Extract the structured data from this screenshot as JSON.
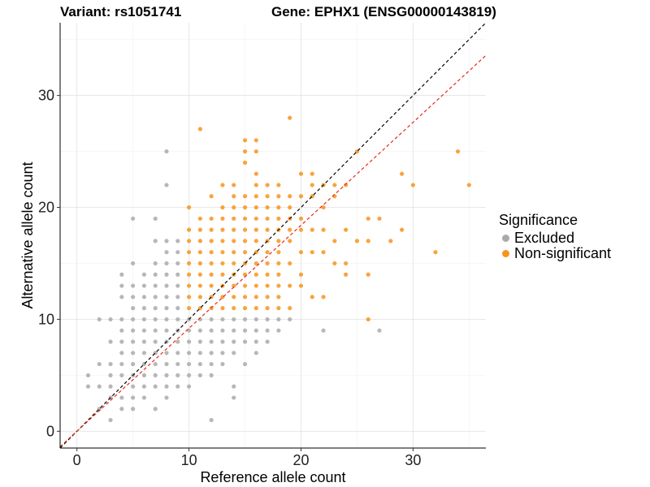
{
  "header": {
    "variant_title": "Variant: rs1051741",
    "gene_title": "Gene: EPHX1 (ENSG00000143819)"
  },
  "legend": {
    "title": "Significance",
    "items": [
      {
        "label": "Excluded",
        "color": "#aaaaaa"
      },
      {
        "label": "Non-significant",
        "color": "#f7941d"
      }
    ]
  },
  "chart_data": {
    "type": "scatter",
    "xlabel": "Reference allele count",
    "ylabel": "Alternative allele count",
    "xlim": [
      -1.5,
      36.5
    ],
    "ylim": [
      -1.5,
      36.5
    ],
    "xticks": [
      0,
      10,
      20,
      30
    ],
    "yticks": [
      0,
      10,
      20,
      30
    ],
    "grid": true,
    "legend_position": "right",
    "reference_lines": [
      {
        "label": "",
        "slope": 1.0,
        "intercept": 0,
        "color": "#000000",
        "style": "dashed"
      },
      {
        "label": "",
        "slope": 0.92,
        "intercept": 0,
        "color": "#e8281c",
        "style": "dashed"
      }
    ],
    "series": [
      {
        "name": "Excluded",
        "color": "#aaaaaa",
        "points": [
          [
            1,
            4
          ],
          [
            1,
            5
          ],
          [
            2,
            2
          ],
          [
            2,
            4
          ],
          [
            2,
            6
          ],
          [
            2,
            10
          ],
          [
            3,
            1
          ],
          [
            3,
            3
          ],
          [
            3,
            4
          ],
          [
            3,
            5
          ],
          [
            3,
            6
          ],
          [
            3,
            8
          ],
          [
            3,
            10
          ],
          [
            4,
            2
          ],
          [
            4,
            3
          ],
          [
            4,
            5
          ],
          [
            4,
            6
          ],
          [
            4,
            7
          ],
          [
            4,
            8
          ],
          [
            4,
            9
          ],
          [
            4,
            10
          ],
          [
            4,
            12
          ],
          [
            4,
            13
          ],
          [
            4,
            14
          ],
          [
            5,
            2
          ],
          [
            5,
            3
          ],
          [
            5,
            4
          ],
          [
            5,
            5
          ],
          [
            5,
            6
          ],
          [
            5,
            7
          ],
          [
            5,
            8
          ],
          [
            5,
            9
          ],
          [
            5,
            10
          ],
          [
            5,
            11
          ],
          [
            5,
            12
          ],
          [
            5,
            13
          ],
          [
            5,
            15
          ],
          [
            5,
            19
          ],
          [
            6,
            3
          ],
          [
            6,
            4
          ],
          [
            6,
            5
          ],
          [
            6,
            6
          ],
          [
            6,
            7
          ],
          [
            6,
            8
          ],
          [
            6,
            9
          ],
          [
            6,
            10
          ],
          [
            6,
            11
          ],
          [
            6,
            12
          ],
          [
            6,
            13
          ],
          [
            6,
            14
          ],
          [
            7,
            2
          ],
          [
            7,
            4
          ],
          [
            7,
            5
          ],
          [
            7,
            6
          ],
          [
            7,
            7
          ],
          [
            7,
            8
          ],
          [
            7,
            9
          ],
          [
            7,
            10
          ],
          [
            7,
            11
          ],
          [
            7,
            12
          ],
          [
            7,
            13
          ],
          [
            7,
            14
          ],
          [
            7,
            15
          ],
          [
            7,
            17
          ],
          [
            7,
            19
          ],
          [
            8,
            3
          ],
          [
            8,
            4
          ],
          [
            8,
            5
          ],
          [
            8,
            6
          ],
          [
            8,
            7
          ],
          [
            8,
            8
          ],
          [
            8,
            9
          ],
          [
            8,
            10
          ],
          [
            8,
            11
          ],
          [
            8,
            12
          ],
          [
            8,
            13
          ],
          [
            8,
            14
          ],
          [
            8,
            15
          ],
          [
            8,
            16
          ],
          [
            8,
            17
          ],
          [
            8,
            22
          ],
          [
            8,
            25
          ],
          [
            9,
            4
          ],
          [
            9,
            5
          ],
          [
            9,
            6
          ],
          [
            9,
            7
          ],
          [
            9,
            8
          ],
          [
            9,
            9
          ],
          [
            9,
            10
          ],
          [
            9,
            11
          ],
          [
            9,
            12
          ],
          [
            9,
            13
          ],
          [
            9,
            14
          ],
          [
            9,
            15
          ],
          [
            9,
            16
          ],
          [
            9,
            17
          ],
          [
            10,
            4
          ],
          [
            10,
            5
          ],
          [
            10,
            6
          ],
          [
            10,
            7
          ],
          [
            10,
            8
          ],
          [
            10,
            9
          ],
          [
            10,
            10
          ],
          [
            11,
            5
          ],
          [
            11,
            6
          ],
          [
            11,
            7
          ],
          [
            11,
            8
          ],
          [
            11,
            9
          ],
          [
            11,
            10
          ],
          [
            12,
            1
          ],
          [
            12,
            5
          ],
          [
            12,
            6
          ],
          [
            12,
            7
          ],
          [
            12,
            8
          ],
          [
            12,
            9
          ],
          [
            12,
            10
          ],
          [
            13,
            6
          ],
          [
            13,
            7
          ],
          [
            13,
            8
          ],
          [
            13,
            9
          ],
          [
            13,
            10
          ],
          [
            14,
            3
          ],
          [
            14,
            4
          ],
          [
            14,
            7
          ],
          [
            14,
            8
          ],
          [
            14,
            9
          ],
          [
            14,
            10
          ],
          [
            15,
            6
          ],
          [
            15,
            8
          ],
          [
            15,
            9
          ],
          [
            15,
            10
          ],
          [
            16,
            7
          ],
          [
            16,
            8
          ],
          [
            16,
            9
          ],
          [
            16,
            10
          ],
          [
            17,
            8
          ],
          [
            17,
            9
          ],
          [
            17,
            10
          ],
          [
            18,
            9
          ],
          [
            18,
            10
          ],
          [
            19,
            10
          ],
          [
            22,
            9
          ],
          [
            27,
            9
          ]
        ]
      },
      {
        "name": "Non-significant",
        "color": "#f7941d",
        "points": [
          [
            10,
            11
          ],
          [
            10,
            12
          ],
          [
            10,
            13
          ],
          [
            10,
            14
          ],
          [
            10,
            15
          ],
          [
            10,
            16
          ],
          [
            10,
            17
          ],
          [
            10,
            18
          ],
          [
            10,
            20
          ],
          [
            11,
            11
          ],
          [
            11,
            12
          ],
          [
            11,
            13
          ],
          [
            11,
            14
          ],
          [
            11,
            15
          ],
          [
            11,
            16
          ],
          [
            11,
            17
          ],
          [
            11,
            18
          ],
          [
            11,
            19
          ],
          [
            11,
            27
          ],
          [
            12,
            11
          ],
          [
            12,
            12
          ],
          [
            12,
            13
          ],
          [
            12,
            14
          ],
          [
            12,
            15
          ],
          [
            12,
            16
          ],
          [
            12,
            17
          ],
          [
            12,
            18
          ],
          [
            12,
            19
          ],
          [
            12,
            21
          ],
          [
            13,
            11
          ],
          [
            13,
            12
          ],
          [
            13,
            13
          ],
          [
            13,
            14
          ],
          [
            13,
            15
          ],
          [
            13,
            16
          ],
          [
            13,
            17
          ],
          [
            13,
            18
          ],
          [
            13,
            19
          ],
          [
            13,
            20
          ],
          [
            13,
            22
          ],
          [
            14,
            11
          ],
          [
            14,
            12
          ],
          [
            14,
            13
          ],
          [
            14,
            14
          ],
          [
            14,
            15
          ],
          [
            14,
            16
          ],
          [
            14,
            17
          ],
          [
            14,
            18
          ],
          [
            14,
            19
          ],
          [
            14,
            20
          ],
          [
            14,
            21
          ],
          [
            14,
            22
          ],
          [
            15,
            11
          ],
          [
            15,
            12
          ],
          [
            15,
            13
          ],
          [
            15,
            14
          ],
          [
            15,
            15
          ],
          [
            15,
            16
          ],
          [
            15,
            17
          ],
          [
            15,
            18
          ],
          [
            15,
            19
          ],
          [
            15,
            20
          ],
          [
            15,
            21
          ],
          [
            15,
            24
          ],
          [
            15,
            25
          ],
          [
            15,
            26
          ],
          [
            16,
            11
          ],
          [
            16,
            12
          ],
          [
            16,
            13
          ],
          [
            16,
            14
          ],
          [
            16,
            15
          ],
          [
            16,
            16
          ],
          [
            16,
            17
          ],
          [
            16,
            18
          ],
          [
            16,
            19
          ],
          [
            16,
            20
          ],
          [
            16,
            21
          ],
          [
            16,
            22
          ],
          [
            16,
            23
          ],
          [
            16,
            25
          ],
          [
            16,
            26
          ],
          [
            17,
            11
          ],
          [
            17,
            12
          ],
          [
            17,
            13
          ],
          [
            17,
            14
          ],
          [
            17,
            15
          ],
          [
            17,
            16
          ],
          [
            17,
            17
          ],
          [
            17,
            18
          ],
          [
            17,
            19
          ],
          [
            17,
            20
          ],
          [
            17,
            21
          ],
          [
            17,
            22
          ],
          [
            18,
            11
          ],
          [
            18,
            12
          ],
          [
            18,
            13
          ],
          [
            18,
            14
          ],
          [
            18,
            15
          ],
          [
            18,
            16
          ],
          [
            18,
            17
          ],
          [
            18,
            18
          ],
          [
            18,
            19
          ],
          [
            18,
            20
          ],
          [
            18,
            21
          ],
          [
            18,
            22
          ],
          [
            19,
            11
          ],
          [
            19,
            13
          ],
          [
            19,
            15
          ],
          [
            19,
            17
          ],
          [
            19,
            18
          ],
          [
            19,
            19
          ],
          [
            19,
            20
          ],
          [
            19,
            21
          ],
          [
            19,
            28
          ],
          [
            20,
            13
          ],
          [
            20,
            14
          ],
          [
            20,
            16
          ],
          [
            20,
            18
          ],
          [
            20,
            19
          ],
          [
            20,
            21
          ],
          [
            20,
            23
          ],
          [
            21,
            12
          ],
          [
            21,
            16
          ],
          [
            21,
            18
          ],
          [
            21,
            21
          ],
          [
            21,
            22
          ],
          [
            21,
            23
          ],
          [
            22,
            12
          ],
          [
            22,
            16
          ],
          [
            22,
            18
          ],
          [
            22,
            20
          ],
          [
            22,
            22
          ],
          [
            23,
            15
          ],
          [
            23,
            17
          ],
          [
            23,
            21
          ],
          [
            23,
            22
          ],
          [
            24,
            14
          ],
          [
            24,
            15
          ],
          [
            24,
            18
          ],
          [
            24,
            22
          ],
          [
            25,
            17
          ],
          [
            25,
            25
          ],
          [
            26,
            10
          ],
          [
            26,
            14
          ],
          [
            26,
            17
          ],
          [
            26,
            19
          ],
          [
            27,
            19
          ],
          [
            28,
            17
          ],
          [
            29,
            18
          ],
          [
            29,
            23
          ],
          [
            30,
            22
          ],
          [
            32,
            16
          ],
          [
            34,
            25
          ],
          [
            35,
            22
          ]
        ]
      }
    ]
  }
}
